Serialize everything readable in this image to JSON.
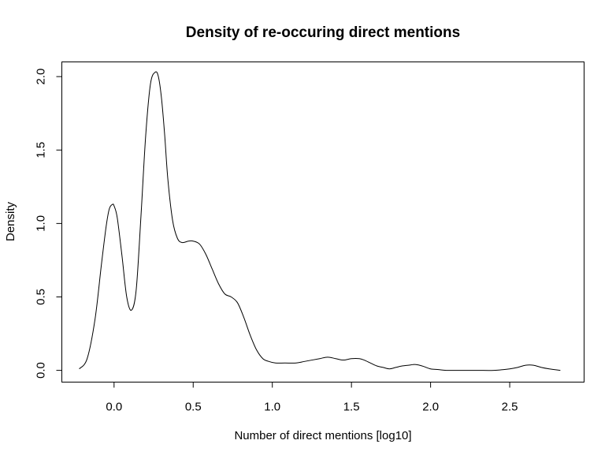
{
  "chart_data": {
    "type": "line",
    "title": "Density of re-occuring direct mentions",
    "xlabel": "Number of direct mentions [log10]",
    "ylabel": "Density",
    "xlim": [
      -0.33,
      2.97
    ],
    "ylim": [
      -0.08,
      2.1
    ],
    "x_ticks": [
      0.0,
      0.5,
      1.0,
      1.5,
      2.0,
      2.5
    ],
    "x_tick_labels": [
      "0.0",
      "0.5",
      "1.0",
      "1.5",
      "2.0",
      "2.5"
    ],
    "y_ticks": [
      0.0,
      0.5,
      1.0,
      1.5,
      2.0
    ],
    "y_tick_labels": [
      "0.0",
      "0.5",
      "1.0",
      "1.5",
      "2.0"
    ],
    "grid": false,
    "series": [
      {
        "x": [
          -0.22,
          -0.17,
          -0.12,
          -0.08,
          -0.05,
          -0.03,
          -0.01,
          0.0,
          0.02,
          0.05,
          0.08,
          0.11,
          0.14,
          0.17,
          0.2,
          0.23,
          0.26,
          0.28,
          0.3,
          0.32,
          0.34,
          0.37,
          0.4,
          0.43,
          0.47,
          0.5,
          0.54,
          0.58,
          0.62,
          0.66,
          0.7,
          0.74,
          0.78,
          0.82,
          0.86,
          0.9,
          0.94,
          0.98,
          1.02,
          1.08,
          1.15,
          1.2,
          1.25,
          1.3,
          1.35,
          1.4,
          1.45,
          1.5,
          1.55,
          1.58,
          1.62,
          1.66,
          1.7,
          1.74,
          1.78,
          1.82,
          1.86,
          1.9,
          1.93,
          1.96,
          2.0,
          2.05,
          2.1,
          2.2,
          2.3,
          2.4,
          2.5,
          2.55,
          2.6,
          2.65,
          2.7,
          2.75,
          2.82
        ],
        "values": [
          0.01,
          0.08,
          0.35,
          0.72,
          0.98,
          1.1,
          1.13,
          1.12,
          1.04,
          0.78,
          0.5,
          0.41,
          0.55,
          1.05,
          1.6,
          1.95,
          2.03,
          2.0,
          1.85,
          1.6,
          1.3,
          1.02,
          0.9,
          0.87,
          0.88,
          0.88,
          0.86,
          0.79,
          0.69,
          0.59,
          0.52,
          0.5,
          0.46,
          0.36,
          0.24,
          0.14,
          0.08,
          0.06,
          0.05,
          0.05,
          0.05,
          0.06,
          0.07,
          0.08,
          0.09,
          0.08,
          0.07,
          0.08,
          0.08,
          0.07,
          0.05,
          0.03,
          0.02,
          0.01,
          0.02,
          0.03,
          0.035,
          0.04,
          0.035,
          0.025,
          0.01,
          0.005,
          0.0,
          0.0,
          0.0,
          0.0,
          0.01,
          0.02,
          0.035,
          0.035,
          0.02,
          0.01,
          0.0
        ]
      }
    ]
  }
}
